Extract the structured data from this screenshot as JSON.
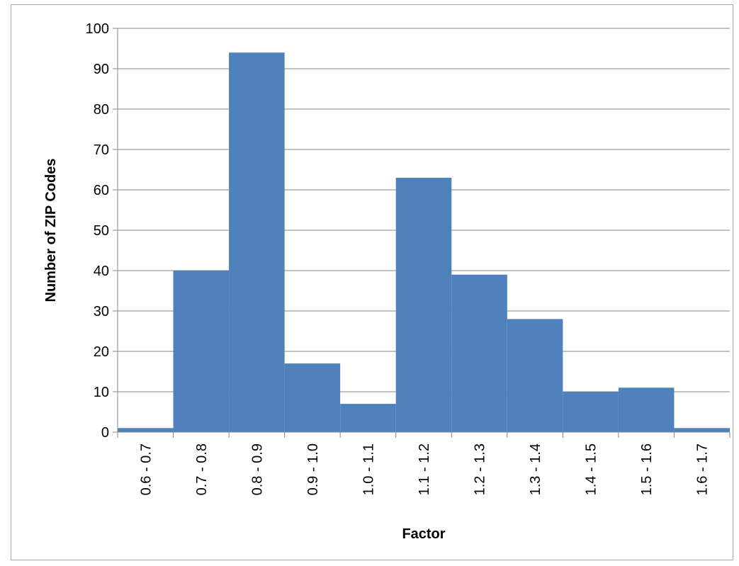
{
  "chart_data": {
    "type": "bar",
    "title": "",
    "xlabel": "Factor",
    "ylabel": "Number of ZIP Codes",
    "categories": [
      "0.6 - 0.7",
      "0.7 - 0.8",
      "0.8 - 0.9",
      "0.9 - 1.0",
      "1.0 - 1.1",
      "1.1 - 1.2",
      "1.2 - 1.3",
      "1.3 - 1.4",
      "1.4 - 1.5",
      "1.5 - 1.6",
      "1.6 - 1.7"
    ],
    "values": [
      1,
      40,
      94,
      17,
      7,
      63,
      39,
      28,
      10,
      11,
      1
    ],
    "ylim": [
      0,
      100
    ],
    "yticks": [
      0,
      10,
      20,
      30,
      40,
      50,
      60,
      70,
      80,
      90,
      100
    ],
    "grid": true,
    "legend": "none",
    "bar_color": "#4f81bd",
    "grid_color": "#868686",
    "bar_gap": 0
  }
}
